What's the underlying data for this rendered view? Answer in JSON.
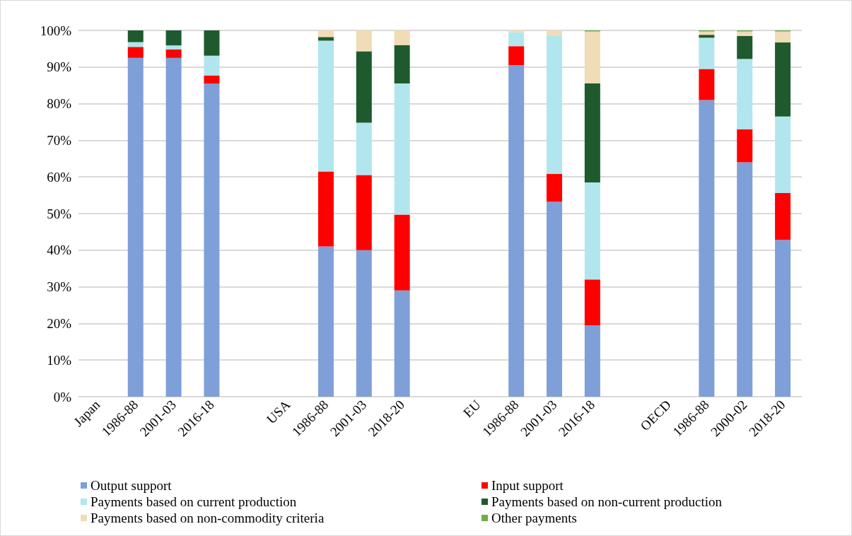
{
  "chart_data": {
    "type": "bar",
    "stacked": true,
    "categories": [
      "Japan",
      "1986-88",
      "2001-03",
      "2016-18",
      null,
      "USA",
      "1986-88",
      "2001-03",
      "2018-20",
      null,
      "EU",
      "1986-88",
      "2001-03",
      "2016-18",
      null,
      "OECD",
      "1986-88",
      "2000-02",
      "2018-20"
    ],
    "series": [
      {
        "name": "Output support",
        "color": "#7f9fd8",
        "values": [
          null,
          92.5,
          92.5,
          85.5,
          null,
          null,
          41,
          40,
          29,
          null,
          null,
          90.5,
          53.2,
          19.5,
          null,
          null,
          81,
          64,
          42.8
        ]
      },
      {
        "name": "Input support",
        "color": "#ff0000",
        "values": [
          null,
          3,
          2.3,
          2.2,
          null,
          null,
          20.5,
          20.5,
          20.7,
          null,
          null,
          5.2,
          7.6,
          12.5,
          null,
          null,
          8.5,
          9,
          12.8
        ]
      },
      {
        "name": "Payments based on current production",
        "color": "#b1e6ee",
        "values": [
          null,
          1.3,
          1.1,
          5.4,
          null,
          null,
          35.7,
          14.3,
          35.8,
          null,
          null,
          3.8,
          37.8,
          26.5,
          null,
          null,
          8.5,
          19.2,
          20.9
        ]
      },
      {
        "name": "Payments based on non-current production",
        "color": "#1e5a2e",
        "values": [
          null,
          3.2,
          4.1,
          6.9,
          null,
          null,
          1,
          19.5,
          10.5,
          null,
          null,
          0,
          0,
          27,
          null,
          null,
          0.8,
          6.3,
          20.2
        ]
      },
      {
        "name": "Payments based on non-commodity criteria",
        "color": "#f0dcb6",
        "values": [
          null,
          0,
          0,
          0,
          null,
          null,
          1.8,
          5.7,
          4,
          null,
          null,
          0.5,
          1.4,
          14.2,
          null,
          null,
          0.9,
          1.2,
          3
        ]
      },
      {
        "name": "Other payments",
        "color": "#70ad47",
        "values": [
          null,
          0,
          0,
          0,
          null,
          null,
          0,
          0,
          0,
          null,
          null,
          0,
          0,
          0.3,
          null,
          null,
          0.3,
          0.3,
          0.3
        ]
      }
    ],
    "ylim": [
      0,
      100
    ],
    "yticks": [
      {
        "value": 0,
        "label": "0%"
      },
      {
        "value": 10,
        "label": "10%"
      },
      {
        "value": 20,
        "label": "20%"
      },
      {
        "value": 30,
        "label": "30%"
      },
      {
        "value": 40,
        "label": "40%"
      },
      {
        "value": 50,
        "label": "50%"
      },
      {
        "value": 60,
        "label": "60%"
      },
      {
        "value": 70,
        "label": "70%"
      },
      {
        "value": 80,
        "label": "80%"
      },
      {
        "value": 90,
        "label": "90%"
      },
      {
        "value": 100,
        "label": "100%"
      }
    ],
    "grid": "y",
    "legend": "bottom"
  }
}
